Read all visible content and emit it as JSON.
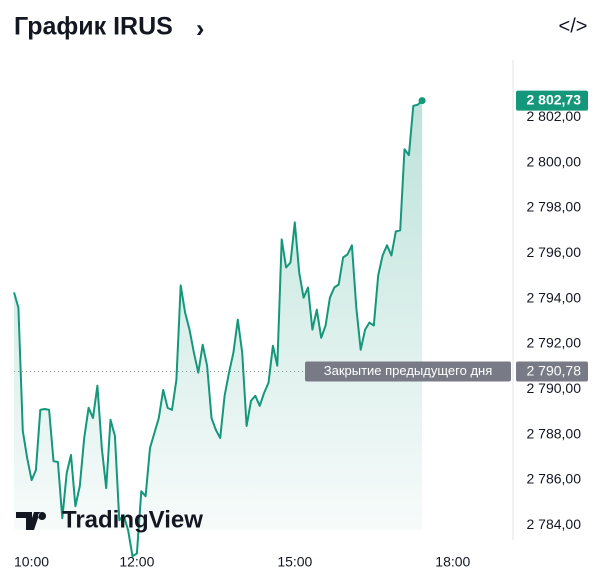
{
  "chart_data": {
    "type": "area",
    "title": "График IRUS",
    "title_icon": "›",
    "code_icon": "</>",
    "watermark": "TradingView",
    "series": [
      {
        "name": "IRUS",
        "color": "#15977c",
        "x": [
          "09:40",
          "09:45",
          "09:50",
          "09:55",
          "10:00",
          "10:05",
          "10:10",
          "10:15",
          "10:20",
          "10:25",
          "10:30",
          "10:35",
          "10:40",
          "10:45",
          "10:50",
          "10:55",
          "11:00",
          "11:05",
          "11:10",
          "11:15",
          "11:20",
          "11:25",
          "11:30",
          "11:35",
          "11:40",
          "11:45",
          "11:50",
          "11:55",
          "12:00",
          "12:05",
          "12:10",
          "12:15",
          "12:20",
          "12:25",
          "12:30",
          "12:35",
          "12:40",
          "12:45",
          "12:50",
          "12:55",
          "13:00",
          "13:05",
          "13:10",
          "13:15",
          "13:20",
          "13:25",
          "13:30",
          "13:35",
          "13:40",
          "13:45",
          "13:50",
          "13:55",
          "14:00",
          "14:05",
          "14:10",
          "14:15",
          "14:20",
          "14:25",
          "14:30",
          "14:35",
          "14:40",
          "14:45",
          "14:50",
          "14:55",
          "15:00",
          "15:05",
          "15:10",
          "15:15",
          "15:20",
          "15:25",
          "15:30",
          "15:35",
          "15:40",
          "15:45",
          "15:50",
          "15:55",
          "16:00",
          "16:05",
          "16:10",
          "16:15",
          "16:20",
          "16:25",
          "16:30",
          "16:35",
          "16:40",
          "16:45",
          "16:50",
          "16:55",
          "17:00",
          "17:05",
          "17:10",
          "17:15",
          "17:20",
          "17:25"
        ],
        "values": [
          2794.27,
          2793.6,
          2788.16,
          2786.96,
          2785.99,
          2786.43,
          2789.09,
          2789.13,
          2789.09,
          2786.83,
          2786.79,
          2784.31,
          2786.3,
          2787.1,
          2784.84,
          2785.73,
          2787.85,
          2789.18,
          2788.73,
          2790.15,
          2787.41,
          2785.64,
          2788.65,
          2787.94,
          2784.22,
          2784.44,
          2783.78,
          2782.63,
          2782.76,
          2785.5,
          2785.28,
          2787.41,
          2788.07,
          2788.73,
          2789.97,
          2789.18,
          2789.09,
          2790.42,
          2794.58,
          2793.38,
          2792.63,
          2791.61,
          2790.73,
          2791.96,
          2791.04,
          2788.73,
          2788.2,
          2787.85,
          2789.71,
          2790.73,
          2791.61,
          2793.07,
          2791.61,
          2788.38,
          2789.49,
          2789.71,
          2789.27,
          2789.84,
          2790.28,
          2791.92,
          2791.04,
          2796.61,
          2795.37,
          2795.59,
          2797.36,
          2795.15,
          2794.04,
          2794.49,
          2792.63,
          2793.51,
          2792.27,
          2792.81,
          2794.04,
          2794.49,
          2794.62,
          2795.81,
          2795.95,
          2796.35,
          2793.6,
          2791.74,
          2792.63,
          2792.94,
          2792.81,
          2795.02,
          2795.9,
          2796.35,
          2795.9,
          2796.96,
          2797.01,
          2800.59,
          2800.33,
          2802.5,
          2802.55,
          2802.73
        ],
        "last_label": "2 802,73"
      }
    ],
    "reference_line": {
      "name": "Закрытие предыдущего дня",
      "value": 2790.78,
      "value_label": "2 790,78"
    },
    "xlim": [
      "09:40",
      "18:23"
    ],
    "xticks": [
      "10:00",
      "12:00",
      "15:00",
      "18:00"
    ],
    "ylim": [
      2782.6,
      2804.7
    ],
    "yticks": [
      {
        "value": 2784,
        "label": "2 784,00"
      },
      {
        "value": 2786,
        "label": "2 786,00"
      },
      {
        "value": 2788,
        "label": "2 788,00"
      },
      {
        "value": 2790,
        "label": "2 790,00"
      },
      {
        "value": 2792,
        "label": "2 792,00"
      },
      {
        "value": 2794,
        "label": "2 794,00"
      },
      {
        "value": 2796,
        "label": "2 796,00"
      },
      {
        "value": 2798,
        "label": "2 798,00"
      },
      {
        "value": 2800,
        "label": "2 800,00"
      },
      {
        "value": 2802,
        "label": "2 802,00"
      }
    ],
    "grid": false
  }
}
